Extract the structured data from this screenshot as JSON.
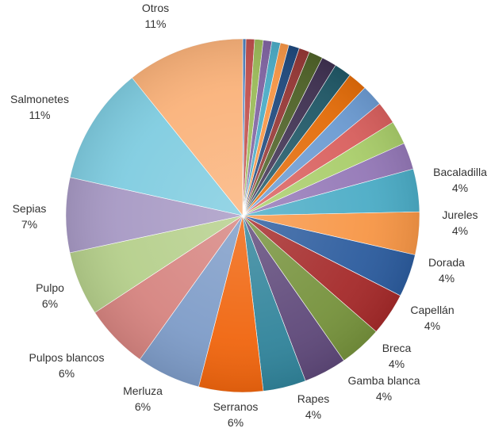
{
  "chart_data": {
    "type": "pie",
    "title": "",
    "legend": "none",
    "slices": [
      {
        "label": "",
        "value": 0.3,
        "color": "#4F81BD"
      },
      {
        "label": "",
        "value": 0.8,
        "color": "#C0504D"
      },
      {
        "label": "",
        "value": 0.8,
        "color": "#9BBB59"
      },
      {
        "label": "",
        "value": 0.8,
        "color": "#8064A2"
      },
      {
        "label": "",
        "value": 0.8,
        "color": "#4BACC6"
      },
      {
        "label": "",
        "value": 0.8,
        "color": "#F79646"
      },
      {
        "label": "",
        "value": 1.0,
        "color": "#1F497D"
      },
      {
        "label": "",
        "value": 1.0,
        "color": "#953735"
      },
      {
        "label": "",
        "value": 1.3,
        "color": "#4F6228"
      },
      {
        "label": "",
        "value": 1.4,
        "color": "#3F3151"
      },
      {
        "label": "",
        "value": 1.6,
        "color": "#205867"
      },
      {
        "label": "",
        "value": 1.8,
        "color": "#E36C09"
      },
      {
        "label": "",
        "value": 2.0,
        "color": "#6C9BD2"
      },
      {
        "label": "",
        "value": 2.1,
        "color": "#D9605E"
      },
      {
        "label": "",
        "value": 2.2,
        "color": "#A9CD6A"
      },
      {
        "label": "",
        "value": 2.5,
        "color": "#9478B7"
      },
      {
        "label": "Bacaladilla",
        "value": 4,
        "value_label": "4%",
        "color": "#4BACC6"
      },
      {
        "label": "Jureles",
        "value": 4,
        "value_label": "4%",
        "color": "#F79646"
      },
      {
        "label": "Dorada",
        "value": 4,
        "value_label": "4%",
        "color": "#2C5C9E"
      },
      {
        "label": "Capellán",
        "value": 4,
        "value_label": "4%",
        "color": "#A52A2A"
      },
      {
        "label": "Gamba blanca",
        "value": 4,
        "value_label": "4%",
        "color": "#76923C"
      },
      {
        "label": "Breca",
        "value": 4,
        "value_label": "4%",
        "color": "#5F497A"
      },
      {
        "label": "Rapes",
        "value": 4,
        "value_label": "4%",
        "color": "#31849B"
      },
      {
        "label": "Serranos",
        "value": 6,
        "value_label": "6%",
        "color": "#F0650E"
      },
      {
        "label": "Merluza",
        "value": 6,
        "value_label": "6%",
        "color": "#7E9CC8"
      },
      {
        "label": "Pulpos blancos",
        "value": 6,
        "value_label": "6%",
        "color": "#D68480"
      },
      {
        "label": "Pulpo",
        "value": 6,
        "value_label": "6%",
        "color": "#B5CF8B"
      },
      {
        "label": "Sepias",
        "value": 7,
        "value_label": "7%",
        "color": "#A799C4"
      },
      {
        "label": "Salmonetes",
        "value": 11,
        "value_label": "11%",
        "color": "#7FCCE0"
      },
      {
        "label": "Otros",
        "value": 11,
        "value_label": "11%",
        "color": "#FAB27A"
      }
    ]
  }
}
